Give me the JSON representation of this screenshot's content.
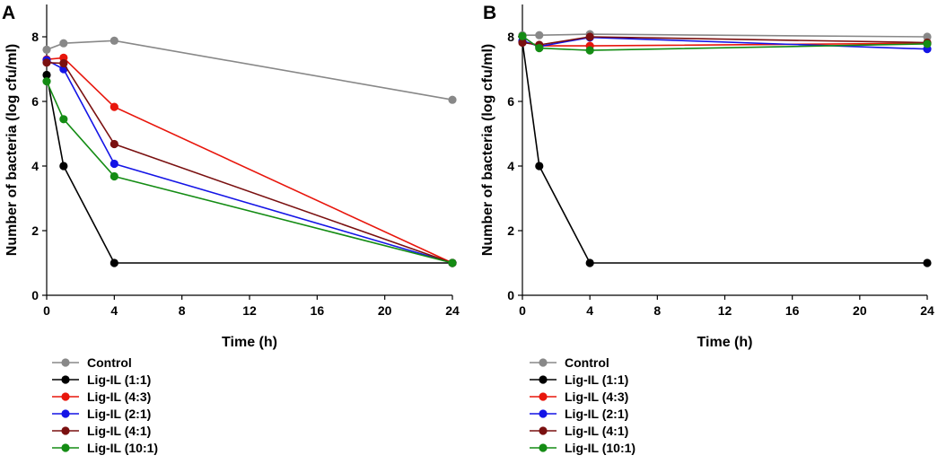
{
  "chart_data": [
    {
      "type": "line",
      "panel": "A",
      "xlabel": "Time (h)",
      "ylabel": "Number of bacteria (log cfu/ml)",
      "xlim": [
        0,
        24
      ],
      "ylim": [
        0,
        9
      ],
      "xticks": [
        0,
        4,
        8,
        12,
        16,
        20,
        24
      ],
      "yticks": [
        0,
        2,
        4,
        6,
        8
      ],
      "x": [
        0,
        1,
        4,
        24
      ],
      "series": [
        {
          "name": "Control",
          "color": "#888888",
          "values": [
            7.6,
            7.8,
            7.88,
            6.05
          ]
        },
        {
          "name": "Lig-IL (1:1)",
          "color": "#000000",
          "values": [
            6.82,
            4.0,
            1.0,
            1.0
          ]
        },
        {
          "name": "Lig-IL (4:3)",
          "color": "#e8160c",
          "values": [
            7.3,
            7.35,
            5.83,
            1.0
          ]
        },
        {
          "name": "Lig-IL (2:1)",
          "color": "#1414e6",
          "values": [
            7.28,
            7.0,
            4.07,
            1.0
          ]
        },
        {
          "name": "Lig-IL (4:1)",
          "color": "#7a1010",
          "values": [
            7.2,
            7.18,
            4.68,
            1.0
          ]
        },
        {
          "name": "Lig-IL (10:1)",
          "color": "#148c14",
          "values": [
            6.62,
            5.45,
            3.68,
            1.0
          ]
        }
      ]
    },
    {
      "type": "line",
      "panel": "B",
      "xlabel": "Time (h)",
      "ylabel": "Number of bacteria (log cfu/ml)",
      "xlim": [
        0,
        24
      ],
      "ylim": [
        0,
        9
      ],
      "xticks": [
        0,
        4,
        8,
        12,
        16,
        20,
        24
      ],
      "yticks": [
        0,
        2,
        4,
        6,
        8
      ],
      "x": [
        0,
        1,
        4,
        24
      ],
      "series": [
        {
          "name": "Control",
          "color": "#888888",
          "values": [
            8.05,
            8.05,
            8.08,
            8.0
          ]
        },
        {
          "name": "Lig-IL (1:1)",
          "color": "#000000",
          "values": [
            7.85,
            4.0,
            1.0,
            1.0
          ]
        },
        {
          "name": "Lig-IL (4:3)",
          "color": "#e8160c",
          "values": [
            7.85,
            7.72,
            7.72,
            7.8
          ]
        },
        {
          "name": "Lig-IL (2:1)",
          "color": "#1414e6",
          "values": [
            7.88,
            7.7,
            7.98,
            7.62
          ]
        },
        {
          "name": "Lig-IL (4:1)",
          "color": "#7a1010",
          "values": [
            7.82,
            7.75,
            8.0,
            7.82
          ]
        },
        {
          "name": "Lig-IL (10:1)",
          "color": "#148c14",
          "values": [
            8.02,
            7.65,
            7.58,
            7.78
          ]
        }
      ]
    }
  ]
}
